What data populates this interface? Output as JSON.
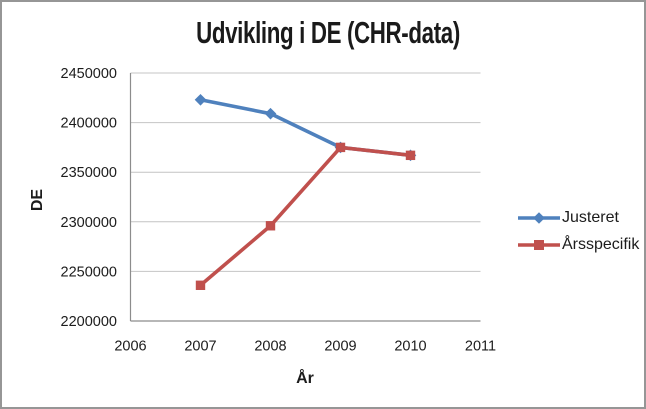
{
  "chart_data": {
    "type": "line",
    "title": "Udvikling i DE (CHR-data)",
    "xlabel": "År",
    "ylabel": "DE",
    "x": [
      2007,
      2008,
      2009,
      2010
    ],
    "series": [
      {
        "name": "Justeret",
        "color": "#4F81BD",
        "marker": "diamond",
        "values": [
          2423000,
          2409000,
          2375000,
          2367000
        ]
      },
      {
        "name": "Årsspecifik",
        "color": "#C0504D",
        "marker": "square",
        "values": [
          2236000,
          2296000,
          2375000,
          2367000
        ]
      }
    ],
    "xlim": [
      2006,
      2011
    ],
    "ylim": [
      2200000,
      2450000
    ],
    "xticks": [
      2006,
      2007,
      2008,
      2009,
      2010,
      2011
    ],
    "yticks": [
      2200000,
      2250000,
      2300000,
      2350000,
      2400000,
      2450000
    ],
    "grid": "horizontal-only",
    "gridline_color": "#c4c4c4",
    "axis_line_color": "#8c8c8c",
    "legend_position": "right"
  }
}
